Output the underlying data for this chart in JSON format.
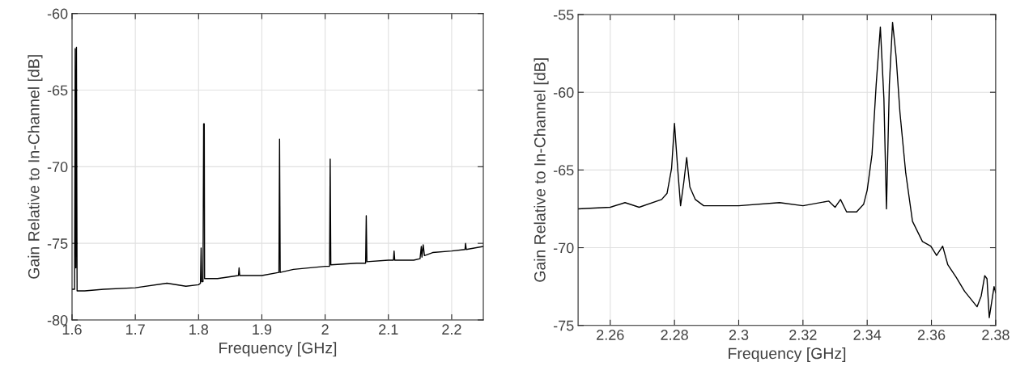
{
  "chart_data": [
    {
      "type": "line",
      "xlabel": "Frequency [GHz]",
      "ylabel": "Gain Relative to In-Channel [dB]",
      "xlim": [
        1.6,
        2.25
      ],
      "ylim": [
        -80,
        -60
      ],
      "xticks": [
        1.6,
        1.7,
        1.8,
        1.9,
        2,
        2.1,
        2.2
      ],
      "yticks": [
        -80,
        -75,
        -70,
        -65,
        -60
      ],
      "grid": true,
      "x": [
        1.6,
        1.604,
        1.605,
        1.606,
        1.607,
        1.608,
        1.62,
        1.65,
        1.7,
        1.75,
        1.78,
        1.8,
        1.803,
        1.804,
        1.805,
        1.807,
        1.808,
        1.809,
        1.8095,
        1.83,
        1.863,
        1.864,
        1.865,
        1.9,
        1.927,
        1.928,
        1.929,
        1.95,
        2.0,
        2.007,
        2.008,
        2.009,
        2.05,
        2.064,
        2.065,
        2.066,
        2.1,
        2.108,
        2.109,
        2.11,
        2.14,
        2.15,
        2.152,
        2.153,
        2.155,
        2.157,
        2.17,
        2.2,
        2.221,
        2.222,
        2.223,
        2.25
      ],
      "series": [
        {
          "color": "#000000",
          "values": [
            -78.0,
            -78.0,
            -62.3,
            -76.6,
            -62.2,
            -78.1,
            -78.1,
            -78.0,
            -77.9,
            -77.6,
            -77.8,
            -77.7,
            -77.6,
            -75.3,
            -77.5,
            -77.5,
            -67.2,
            -67.2,
            -77.3,
            -77.3,
            -77.1,
            -76.6,
            -77.1,
            -77.1,
            -76.9,
            -68.2,
            -76.9,
            -76.7,
            -76.5,
            -76.5,
            -69.5,
            -76.4,
            -76.3,
            -76.3,
            -73.2,
            -76.2,
            -76.1,
            -76.1,
            -75.5,
            -76.1,
            -76.1,
            -76.0,
            -75.2,
            -75.9,
            -75.1,
            -75.8,
            -75.6,
            -75.5,
            -75.4,
            -75.0,
            -75.4,
            -75.2
          ]
        }
      ]
    },
    {
      "type": "line",
      "xlabel": "Frequency [GHz]",
      "ylabel": "Gain Relative to In-Channel [dB]",
      "xlim": [
        2.25,
        2.38
      ],
      "ylim": [
        -75,
        -55
      ],
      "xticks": [
        2.26,
        2.28,
        2.3,
        2.32,
        2.34,
        2.36,
        2.38
      ],
      "yticks": [
        -75,
        -70,
        -65,
        -60,
        -55
      ],
      "grid": true,
      "x": [
        2.25,
        2.26,
        2.2646,
        2.269,
        2.276,
        2.2777,
        2.2791,
        2.28,
        2.281,
        2.2819,
        2.2829,
        2.2838,
        2.2848,
        2.2865,
        2.2891,
        2.3,
        2.3127,
        2.32,
        2.328,
        2.33,
        2.3317,
        2.3336,
        2.3367,
        2.3389,
        2.34,
        2.3415,
        2.3428,
        2.3441,
        2.3452,
        2.346,
        2.3469,
        2.3479,
        2.349,
        2.3502,
        2.352,
        2.3541,
        2.3572,
        2.3598,
        2.3616,
        2.3635,
        2.3651,
        2.3677,
        2.3703,
        2.3742,
        2.3755,
        2.3766,
        2.3773,
        2.378,
        2.3795,
        2.38
      ],
      "series": [
        {
          "color": "#000000",
          "values": [
            -67.5,
            -67.4,
            -67.1,
            -67.4,
            -66.9,
            -66.5,
            -64.9,
            -62.0,
            -64.9,
            -67.3,
            -65.8,
            -64.2,
            -66.1,
            -66.9,
            -67.3,
            -67.3,
            -67.1,
            -67.3,
            -67.0,
            -67.4,
            -66.9,
            -67.7,
            -67.7,
            -67.2,
            -66.3,
            -64.0,
            -59.5,
            -55.8,
            -60.4,
            -67.5,
            -59.5,
            -55.5,
            -57.7,
            -61.3,
            -65.2,
            -68.3,
            -69.6,
            -69.9,
            -70.5,
            -69.9,
            -71.1,
            -71.9,
            -72.8,
            -73.8,
            -73.1,
            -71.8,
            -72.0,
            -74.5,
            -72.5,
            -72.9
          ]
        }
      ]
    }
  ]
}
